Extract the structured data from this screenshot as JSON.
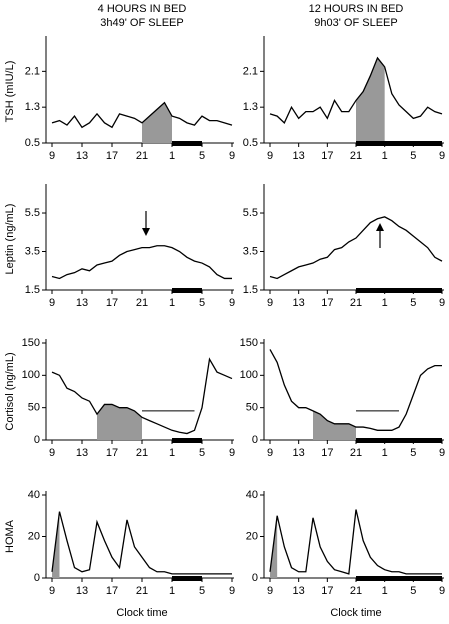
{
  "columns": [
    {
      "title": "4 HOURS IN BED",
      "subtitle": "3h49' OF SLEEP"
    },
    {
      "title": "12 HOURS IN BED",
      "subtitle": "9h03' OF SLEEP"
    }
  ],
  "chart_data": [
    {
      "type": "line",
      "ylabel": "TSH (mIU/L)",
      "x": [
        9,
        10,
        11,
        12,
        13,
        14,
        15,
        16,
        17,
        18,
        19,
        20,
        21,
        22,
        23,
        24,
        25,
        26,
        27,
        28,
        29,
        30,
        31,
        32,
        33
      ],
      "values": [
        0.95,
        1.0,
        0.9,
        1.1,
        0.85,
        0.95,
        1.15,
        0.95,
        0.85,
        1.15,
        1.1,
        1.05,
        0.95,
        1.1,
        1.25,
        1.4,
        1.1,
        1.05,
        0.95,
        0.9,
        1.1,
        1.0,
        1.0,
        0.95,
        0.9
      ],
      "color": "#000000",
      "shade": [
        21,
        25
      ],
      "shade_color": "#999999",
      "sleep": [
        25,
        29
      ],
      "xlim": [
        9,
        33
      ],
      "xticks": [
        9,
        13,
        17,
        21,
        {
          "value": 25,
          "label": "1"
        },
        {
          "value": 29,
          "label": "5"
        },
        {
          "value": 33,
          "label": "9"
        }
      ],
      "ylim": [
        0.5,
        2.8
      ],
      "yticks": [
        0.5,
        1.3,
        2.1
      ]
    },
    {
      "type": "line",
      "x": [
        9,
        10,
        11,
        12,
        13,
        14,
        15,
        16,
        17,
        18,
        19,
        20,
        21,
        22,
        23,
        24,
        25,
        26,
        27,
        28,
        29,
        30,
        31,
        32,
        33
      ],
      "values": [
        1.15,
        1.1,
        0.95,
        1.3,
        1.05,
        1.2,
        1.2,
        1.3,
        1.05,
        1.45,
        1.2,
        1.2,
        1.45,
        1.65,
        2.0,
        2.4,
        2.2,
        1.6,
        1.35,
        1.2,
        1.05,
        1.1,
        1.3,
        1.2,
        1.15
      ],
      "color": "#000000",
      "shade": [
        21,
        25
      ],
      "shade_color": "#999999",
      "sleep": [
        21,
        33
      ],
      "xlim": [
        9,
        33
      ],
      "xticks": [
        9,
        13,
        17,
        21,
        {
          "value": 25,
          "label": "1"
        },
        {
          "value": 29,
          "label": "5"
        },
        {
          "value": 33,
          "label": "9"
        }
      ],
      "ylim": [
        0.5,
        2.8
      ],
      "yticks": [
        0.5,
        1.3,
        2.1
      ]
    },
    {
      "type": "line",
      "ylabel": "Leptin (ng/mL)",
      "x": [
        9,
        10,
        11,
        12,
        13,
        14,
        15,
        16,
        17,
        18,
        19,
        20,
        21,
        22,
        23,
        24,
        25,
        26,
        27,
        28,
        29,
        30,
        31,
        32,
        33
      ],
      "values": [
        2.2,
        2.1,
        2.3,
        2.4,
        2.6,
        2.5,
        2.8,
        2.9,
        3.0,
        3.3,
        3.5,
        3.6,
        3.7,
        3.7,
        3.8,
        3.8,
        3.7,
        3.5,
        3.2,
        3.0,
        2.9,
        2.7,
        2.3,
        2.1,
        2.1
      ],
      "color": "#000000",
      "sleep": [
        25,
        29
      ],
      "xlim": [
        9,
        33
      ],
      "xticks": [
        9,
        13,
        17,
        21,
        {
          "value": 25,
          "label": "1"
        },
        {
          "value": 29,
          "label": "5"
        },
        {
          "value": 33,
          "label": "9"
        }
      ],
      "ylim": [
        1.5,
        6.8
      ],
      "yticks": [
        1.5,
        3.5,
        5.5
      ]
    },
    {
      "type": "line",
      "x": [
        9,
        10,
        11,
        12,
        13,
        14,
        15,
        16,
        17,
        18,
        19,
        20,
        21,
        22,
        23,
        24,
        25,
        26,
        27,
        28,
        29,
        30,
        31,
        32,
        33
      ],
      "values": [
        2.2,
        2.1,
        2.3,
        2.5,
        2.7,
        2.8,
        2.9,
        3.1,
        3.2,
        3.6,
        3.7,
        4.0,
        4.2,
        4.6,
        5.0,
        5.2,
        5.3,
        5.1,
        4.8,
        4.6,
        4.3,
        4.0,
        3.7,
        3.2,
        3.0
      ],
      "color": "#000000",
      "sleep": [
        21,
        33
      ],
      "xlim": [
        9,
        33
      ],
      "xticks": [
        9,
        13,
        17,
        21,
        {
          "value": 25,
          "label": "1"
        },
        {
          "value": 29,
          "label": "5"
        },
        {
          "value": 33,
          "label": "9"
        }
      ],
      "ylim": [
        1.5,
        6.8
      ],
      "yticks": [
        1.5,
        3.5,
        5.5
      ]
    },
    {
      "type": "line",
      "ylabel": "Cortisol (ng/mL)",
      "x": [
        9,
        10,
        11,
        12,
        13,
        14,
        15,
        16,
        17,
        18,
        19,
        20,
        21,
        22,
        23,
        24,
        25,
        26,
        27,
        28,
        29,
        30,
        31,
        32,
        33
      ],
      "values": [
        105,
        100,
        80,
        75,
        65,
        60,
        40,
        55,
        55,
        50,
        50,
        45,
        35,
        30,
        25,
        20,
        15,
        12,
        10,
        15,
        50,
        125,
        105,
        100,
        95
      ],
      "color": "#000000",
      "shade": [
        15,
        21
      ],
      "shade_color": "#999999",
      "sleep": [
        25,
        29
      ],
      "reference_line": {
        "y": 45,
        "x": [
          21,
          28
        ]
      },
      "xlim": [
        9,
        33
      ],
      "xticks": [
        9,
        13,
        17,
        21,
        {
          "value": 25,
          "label": "1"
        },
        {
          "value": 29,
          "label": "5"
        },
        {
          "value": 33,
          "label": "9"
        }
      ],
      "ylim": [
        0,
        150
      ],
      "yticks": [
        0,
        50,
        100,
        150
      ]
    },
    {
      "type": "line",
      "x": [
        9,
        10,
        11,
        12,
        13,
        14,
        15,
        16,
        17,
        18,
        19,
        20,
        21,
        22,
        23,
        24,
        25,
        26,
        27,
        28,
        29,
        30,
        31,
        32,
        33
      ],
      "values": [
        140,
        120,
        85,
        60,
        50,
        50,
        45,
        40,
        30,
        25,
        25,
        25,
        20,
        20,
        18,
        15,
        15,
        15,
        20,
        40,
        70,
        100,
        110,
        115,
        115
      ],
      "color": "#000000",
      "shade": [
        15,
        21
      ],
      "shade_color": "#999999",
      "sleep": [
        21,
        33
      ],
      "reference_line": {
        "y": 45,
        "x": [
          21,
          27
        ]
      },
      "xlim": [
        9,
        33
      ],
      "xticks": [
        9,
        13,
        17,
        21,
        {
          "value": 25,
          "label": "1"
        },
        {
          "value": 29,
          "label": "5"
        },
        {
          "value": 33,
          "label": "9"
        }
      ],
      "ylim": [
        0,
        150
      ],
      "yticks": [
        0,
        50,
        100,
        150
      ]
    },
    {
      "type": "line",
      "ylabel": "HOMA",
      "xlabel": "Clock time",
      "x": [
        9,
        10,
        11,
        12,
        13,
        14,
        15,
        16,
        17,
        18,
        19,
        20,
        21,
        22,
        23,
        24,
        25,
        26,
        27,
        28,
        29,
        30,
        31,
        32,
        33
      ],
      "values": [
        3,
        32,
        18,
        5,
        3,
        4,
        27,
        18,
        10,
        5,
        28,
        15,
        10,
        5,
        3,
        3,
        2,
        2,
        2,
        2,
        2,
        2,
        2,
        2,
        2
      ],
      "color": "#000000",
      "shade": [
        9,
        10
      ],
      "shade_color": "#999999",
      "sleep": [
        25,
        29
      ],
      "xlim": [
        9,
        33
      ],
      "xticks": [
        9,
        13,
        17,
        21,
        {
          "value": 25,
          "label": "1"
        },
        {
          "value": 29,
          "label": "5"
        },
        {
          "value": 33,
          "label": "9"
        }
      ],
      "ylim": [
        0,
        40
      ],
      "yticks": [
        0,
        20,
        40
      ]
    },
    {
      "type": "line",
      "xlabel": "Clock time",
      "x": [
        9,
        10,
        11,
        12,
        13,
        14,
        15,
        16,
        17,
        18,
        19,
        20,
        21,
        22,
        23,
        24,
        25,
        26,
        27,
        28,
        29,
        30,
        31,
        32,
        33
      ],
      "values": [
        3,
        30,
        15,
        5,
        3,
        3,
        29,
        15,
        8,
        4,
        3,
        2,
        33,
        18,
        10,
        6,
        4,
        3,
        3,
        2,
        2,
        2,
        2,
        2,
        2
      ],
      "color": "#000000",
      "shade": [
        9,
        10
      ],
      "shade_color": "#999999",
      "sleep": [
        21,
        33
      ],
      "xlim": [
        9,
        33
      ],
      "xticks": [
        9,
        13,
        17,
        21,
        {
          "value": 25,
          "label": "1"
        },
        {
          "value": 29,
          "label": "5"
        },
        {
          "value": 33,
          "label": "9"
        }
      ],
      "ylim": [
        0,
        40
      ],
      "yticks": [
        0,
        20,
        40
      ]
    }
  ]
}
